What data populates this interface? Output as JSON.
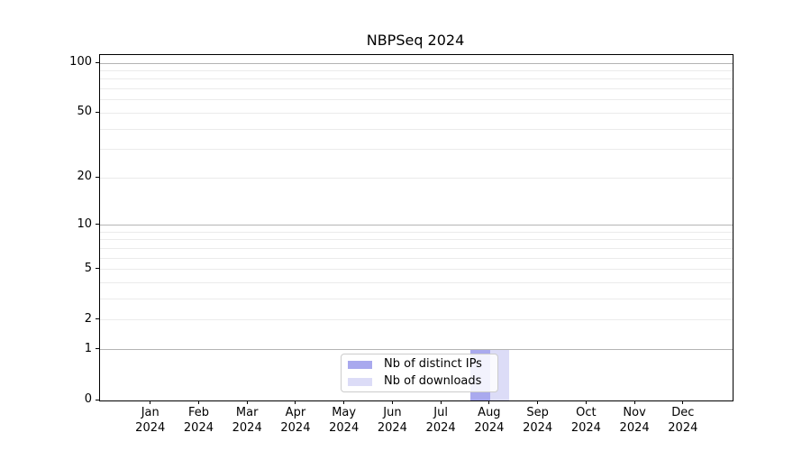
{
  "figure": {
    "title": "NBPSeq 2024"
  },
  "chart_data": {
    "type": "bar",
    "title": "NBPSeq 2024",
    "categories": [
      "Jan 2024",
      "Feb 2024",
      "Mar 2024",
      "Apr 2024",
      "May 2024",
      "Jun 2024",
      "Jul 2024",
      "Aug 2024",
      "Sep 2024",
      "Oct 2024",
      "Nov 2024",
      "Dec 2024"
    ],
    "x_tick_months": [
      "Jan",
      "Feb",
      "Mar",
      "Apr",
      "May",
      "Jun",
      "Jul",
      "Aug",
      "Sep",
      "Oct",
      "Nov",
      "Dec"
    ],
    "x_tick_year": "2024",
    "series": [
      {
        "name": "Nb of distinct IPs",
        "color": "#a9a9ee",
        "values": [
          0,
          0,
          0,
          0,
          0,
          0,
          0,
          1,
          0,
          0,
          0,
          0
        ]
      },
      {
        "name": "Nb of downloads",
        "color": "#dcdcf7",
        "values": [
          0,
          0,
          0,
          0,
          0,
          0,
          0,
          1,
          0,
          0,
          0,
          0
        ]
      }
    ],
    "y_axis": {
      "scale": "log1p",
      "tick_values": [
        0,
        1,
        2,
        5,
        10,
        20,
        50,
        100
      ],
      "major_gridlines": [
        1,
        10,
        100
      ],
      "minor_gridlines": [
        2,
        3,
        4,
        5,
        6,
        7,
        8,
        9,
        20,
        30,
        40,
        50,
        60,
        70,
        80,
        90
      ],
      "limit": [
        0,
        112
      ]
    },
    "legend": {
      "position": "lower center",
      "entries": [
        "Nb of distinct IPs",
        "Nb of downloads"
      ]
    },
    "grid": true,
    "xlabel": "",
    "ylabel": ""
  },
  "colors": {
    "bar_distinct_ips": "#a9a9ee",
    "bar_downloads": "#dcdcf7",
    "major_gridline": "#b4b4b4",
    "minor_gridline": "#ebebeb",
    "axis": "#000000",
    "legend_border": "#cccccc"
  }
}
